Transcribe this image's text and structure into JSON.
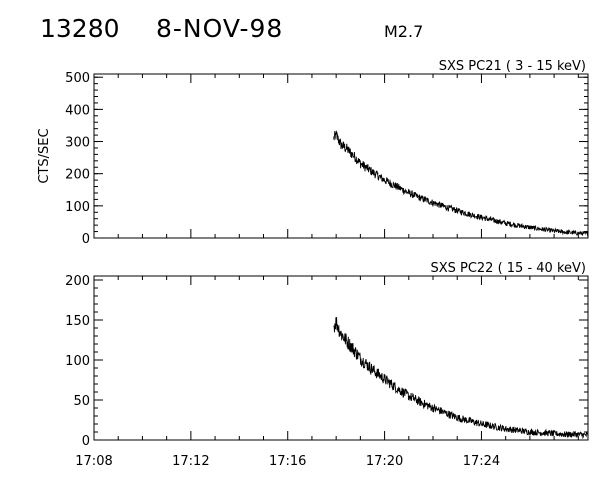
{
  "header": {
    "event_id": "13280",
    "date": "8-NOV-98",
    "flare_class": "M2.7"
  },
  "chart_data": [
    {
      "type": "line",
      "title": "SXS PC21  (  3 - 15 keV)",
      "ylabel": "CTS/SEC",
      "xlabel": "",
      "ylim": [
        0,
        510
      ],
      "yticks": [
        0,
        100,
        200,
        300,
        400,
        500
      ],
      "xlim_min": [
        8,
        28.4
      ],
      "xticks": [
        "17:08",
        "17:12",
        "17:16",
        "17:20",
        "17:24"
      ],
      "xticks_min": [
        8,
        12,
        16,
        20,
        24
      ],
      "show_xtick_labels": false,
      "series": [
        {
          "color": "#000000",
          "x_min": [
            17.9,
            18.0,
            18.1,
            18.2,
            18.4,
            18.6,
            18.8,
            19.0,
            19.5,
            20.0,
            20.5,
            21.0,
            21.5,
            22.0,
            22.5,
            23.0,
            23.5,
            24.0,
            24.5,
            25.0,
            25.5,
            26.0,
            26.5,
            27.0,
            27.5,
            28.0,
            28.4
          ],
          "y": [
            310,
            320,
            305,
            290,
            280,
            265,
            250,
            232,
            205,
            180,
            160,
            140,
            124,
            110,
            97,
            85,
            74,
            64,
            55,
            46,
            39,
            33,
            27,
            22,
            18,
            15,
            13
          ],
          "noise": 18
        }
      ]
    },
    {
      "type": "line",
      "title": "SXS PC22  ( 15 - 40 keV)",
      "ylabel": "",
      "xlabel": "",
      "ylim": [
        0,
        205
      ],
      "yticks": [
        0,
        50,
        100,
        150,
        200
      ],
      "xlim_min": [
        8,
        28.4
      ],
      "xticks": [
        "17:08",
        "17:12",
        "17:16",
        "17:20",
        "17:24"
      ],
      "xticks_min": [
        8,
        12,
        16,
        20,
        24
      ],
      "show_xtick_labels": true,
      "series": [
        {
          "color": "#000000",
          "x_min": [
            17.9,
            18.0,
            18.1,
            18.2,
            18.4,
            18.6,
            18.8,
            19.0,
            19.5,
            20.0,
            20.5,
            21.0,
            21.5,
            22.0,
            22.5,
            23.0,
            23.5,
            24.0,
            24.5,
            25.0,
            25.5,
            26.0,
            26.5,
            27.0,
            27.5,
            28.0,
            28.4
          ],
          "y": [
            142,
            148,
            140,
            133,
            125,
            118,
            110,
            102,
            88,
            76,
            65,
            55,
            47,
            40,
            34,
            28,
            24,
            20,
            17,
            14,
            12,
            10,
            9,
            8,
            7,
            7,
            6
          ],
          "noise": 10
        }
      ]
    }
  ]
}
